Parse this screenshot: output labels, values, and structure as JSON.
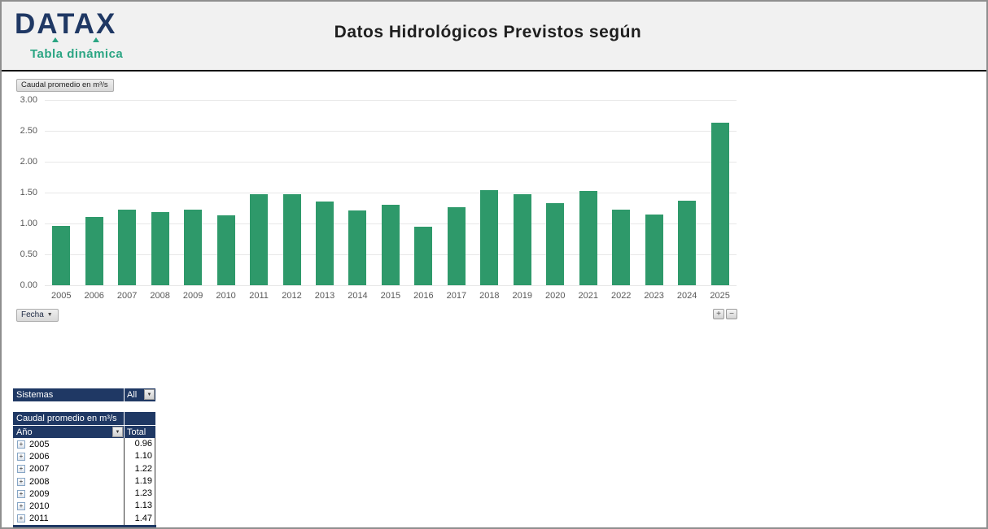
{
  "icons": {
    "dropdown_arrow": "▼",
    "expand_plus": "+"
  },
  "header": {
    "logo": "DATAX",
    "subtitle": "Tabla dinámica",
    "title": "Datos Hidrológicos Previstos según"
  },
  "chart": {
    "field_button": "Caudal promedio en m³/s",
    "axis_field_button": "Fecha",
    "expand_label": "+",
    "collapse_label": "−"
  },
  "filter": {
    "label": "Sistemas",
    "value": "All"
  },
  "pivot": {
    "title": "Caudal promedio en m³/s",
    "row_label": "Año",
    "total_label": "Total",
    "rows": [
      {
        "year": "2005",
        "total": "0.96"
      },
      {
        "year": "2006",
        "total": "1.10"
      },
      {
        "year": "2007",
        "total": "1.22"
      },
      {
        "year": "2008",
        "total": "1.19"
      },
      {
        "year": "2009",
        "total": "1.23"
      },
      {
        "year": "2010",
        "total": "1.13"
      },
      {
        "year": "2011",
        "total": "1.47"
      }
    ]
  },
  "chart_data": {
    "type": "bar",
    "title": "Caudal promedio en m³/s",
    "categories": [
      "2005",
      "2006",
      "2007",
      "2008",
      "2009",
      "2010",
      "2011",
      "2012",
      "2013",
      "2014",
      "2015",
      "2016",
      "2017",
      "2018",
      "2019",
      "2020",
      "2021",
      "2022",
      "2023",
      "2024",
      "2025"
    ],
    "values": [
      0.96,
      1.1,
      1.22,
      1.19,
      1.23,
      1.13,
      1.47,
      1.48,
      1.36,
      1.21,
      1.3,
      0.95,
      1.26,
      1.54,
      1.47,
      1.33,
      1.53,
      1.23,
      1.14,
      1.37,
      2.63
    ],
    "xlabel": "Fecha",
    "ylabel": "Caudal promedio en m³/s",
    "ylim": [
      0,
      3
    ],
    "ytick_labels": [
      "3.00",
      "2.50",
      "2.00",
      "1.50",
      "1.00",
      "0.50",
      "0.00"
    ],
    "grid": true,
    "legend": false,
    "bar_color": "#2E996A"
  },
  "colors": {
    "navy": "#1F3864",
    "bar_green": "#2E996A",
    "teal": "#2BA583",
    "header_bg": "#F1F1F1"
  }
}
